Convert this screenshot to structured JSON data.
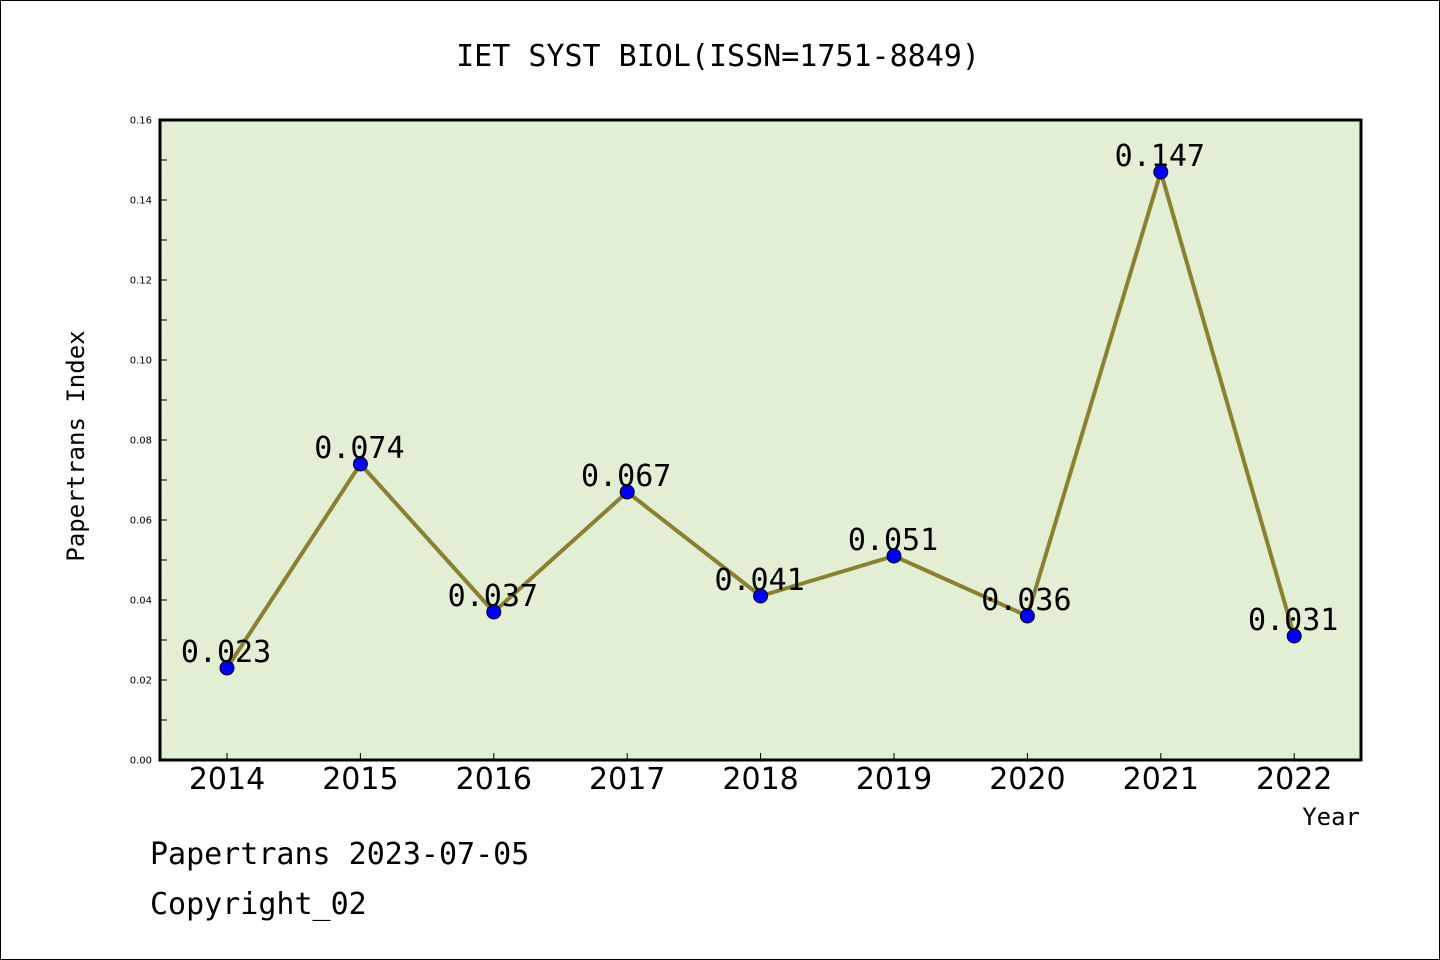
{
  "chart_data": {
    "type": "line",
    "title": "IET SYST BIOL(ISSN=1751-8849)",
    "xlabel": "Year",
    "ylabel": "Papertrans Index",
    "categories": [
      "2014",
      "2015",
      "2016",
      "2017",
      "2018",
      "2019",
      "2020",
      "2021",
      "2022"
    ],
    "series": [
      {
        "values": [
          0.023,
          0.074,
          0.037,
          0.067,
          0.041,
          0.051,
          0.036,
          0.147,
          0.031
        ],
        "labels": [
          "0.023",
          "0.074",
          "0.037",
          "0.067",
          "0.041",
          "0.051",
          "0.036",
          "0.147",
          "0.031"
        ],
        "line_color": "#8c8030",
        "marker_color": "#0000ff"
      }
    ],
    "ylim": [
      0,
      0.16
    ],
    "yticks": [
      "0.00",
      "0.02",
      "0.04",
      "0.06",
      "0.08",
      "0.10",
      "0.12",
      "0.14",
      "0.16"
    ],
    "plot_background": "#e2efd4",
    "grid": false,
    "legend": "none"
  },
  "footer": {
    "line1": "Papertrans 2023-07-05",
    "line2": "Copyright_02"
  }
}
